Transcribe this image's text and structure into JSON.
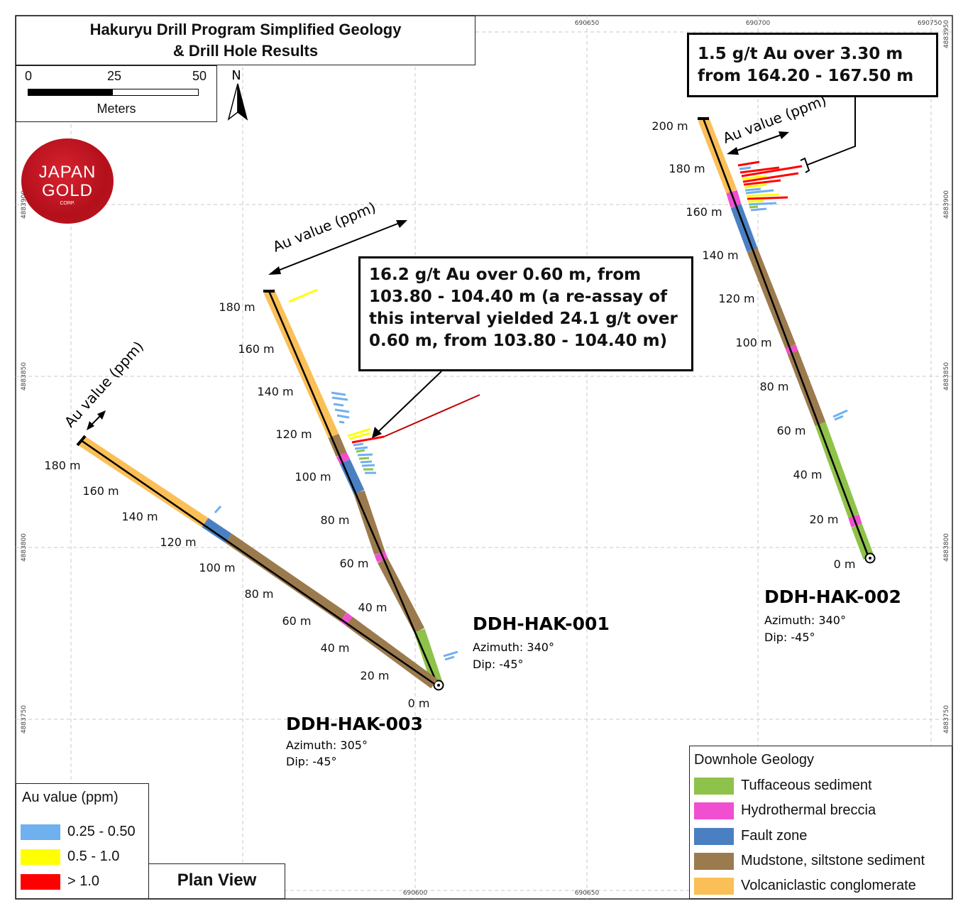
{
  "title": {
    "line1": "Hakuryu Drill Program Simplified Geology",
    "line2": "& Drill Hole Results"
  },
  "scale_bar": {
    "ticks": [
      "0",
      "25",
      "50"
    ],
    "units": "Meters"
  },
  "north_arrow": {
    "label": "N"
  },
  "logo": {
    "line1": "JAPAN",
    "line2": "GOLD",
    "line3": "CORP."
  },
  "grid_labels": {
    "top": [
      "690650",
      "690700",
      "690750"
    ],
    "bottom": [
      "690600",
      "690650"
    ],
    "left": [
      "4883900",
      "4883850",
      "4883800",
      "4883750"
    ],
    "right": [
      "4883950",
      "4883900",
      "4883850",
      "4883800",
      "4883750"
    ]
  },
  "drill_holes": [
    {
      "id": "DDH-HAK-001",
      "azimuth": "Azimuth: 340°",
      "dip": "Dip: -45°",
      "depth_labels": [
        "0 m",
        "40 m",
        "60 m",
        "80 m",
        "100 m",
        "120 m",
        "140 m",
        "160 m",
        "180 m"
      ],
      "au_label": "Au value (ppm)"
    },
    {
      "id": "DDH-HAK-002",
      "azimuth": "Azimuth: 340°",
      "dip": "Dip: -45°",
      "depth_labels": [
        "0 m",
        "20 m",
        "40 m",
        "60 m",
        "80 m",
        "100 m",
        "120 m",
        "140 m",
        "160 m",
        "180 m",
        "200 m"
      ],
      "au_label": "Au value (ppm)"
    },
    {
      "id": "DDH-HAK-003",
      "azimuth": "Azimuth: 305°",
      "dip": "Dip: -45°",
      "depth_labels": [
        "20 m",
        "40 m",
        "60 m",
        "80 m",
        "100 m",
        "120 m",
        "140 m",
        "160 m",
        "180 m"
      ],
      "au_label": "Au value (ppm)"
    }
  ],
  "callouts": {
    "hak001": {
      "line1": "16.2 g/t Au over 0.60 m, from",
      "line2": "103.80 - 104.40 m (a re-assay of",
      "line3": "this interval yielded 24.1 g/t over",
      "line4": "0.60 m, from 103.80 - 104.40 m)"
    },
    "hak002": {
      "line1": "1.5 g/t Au over 3.30 m",
      "line2": "from 164.20 - 167.50 m"
    }
  },
  "legend_au": {
    "header": "Au value (ppm)",
    "items": [
      {
        "label": "0.25 - 0.50",
        "color": "#6fb0ef"
      },
      {
        "label": "0.5 - 1.0",
        "color": "#ffff00"
      },
      {
        "label": "> 1.0",
        "color": "#ff0000"
      }
    ]
  },
  "legend_geology": {
    "header": "Downhole Geology",
    "items": [
      {
        "label": "Tuffaceous sediment",
        "color": "#8fc24a"
      },
      {
        "label": "Hydrothermal breccia",
        "color": "#f04fcf"
      },
      {
        "label": "Fault zone",
        "color": "#4a80c2"
      },
      {
        "label": "Mudstone, siltstone sediment",
        "color": "#9b7b4e"
      },
      {
        "label": "Volcaniclastic conglomerate",
        "color": "#fbbf57"
      }
    ]
  },
  "view_label": "Plan View"
}
